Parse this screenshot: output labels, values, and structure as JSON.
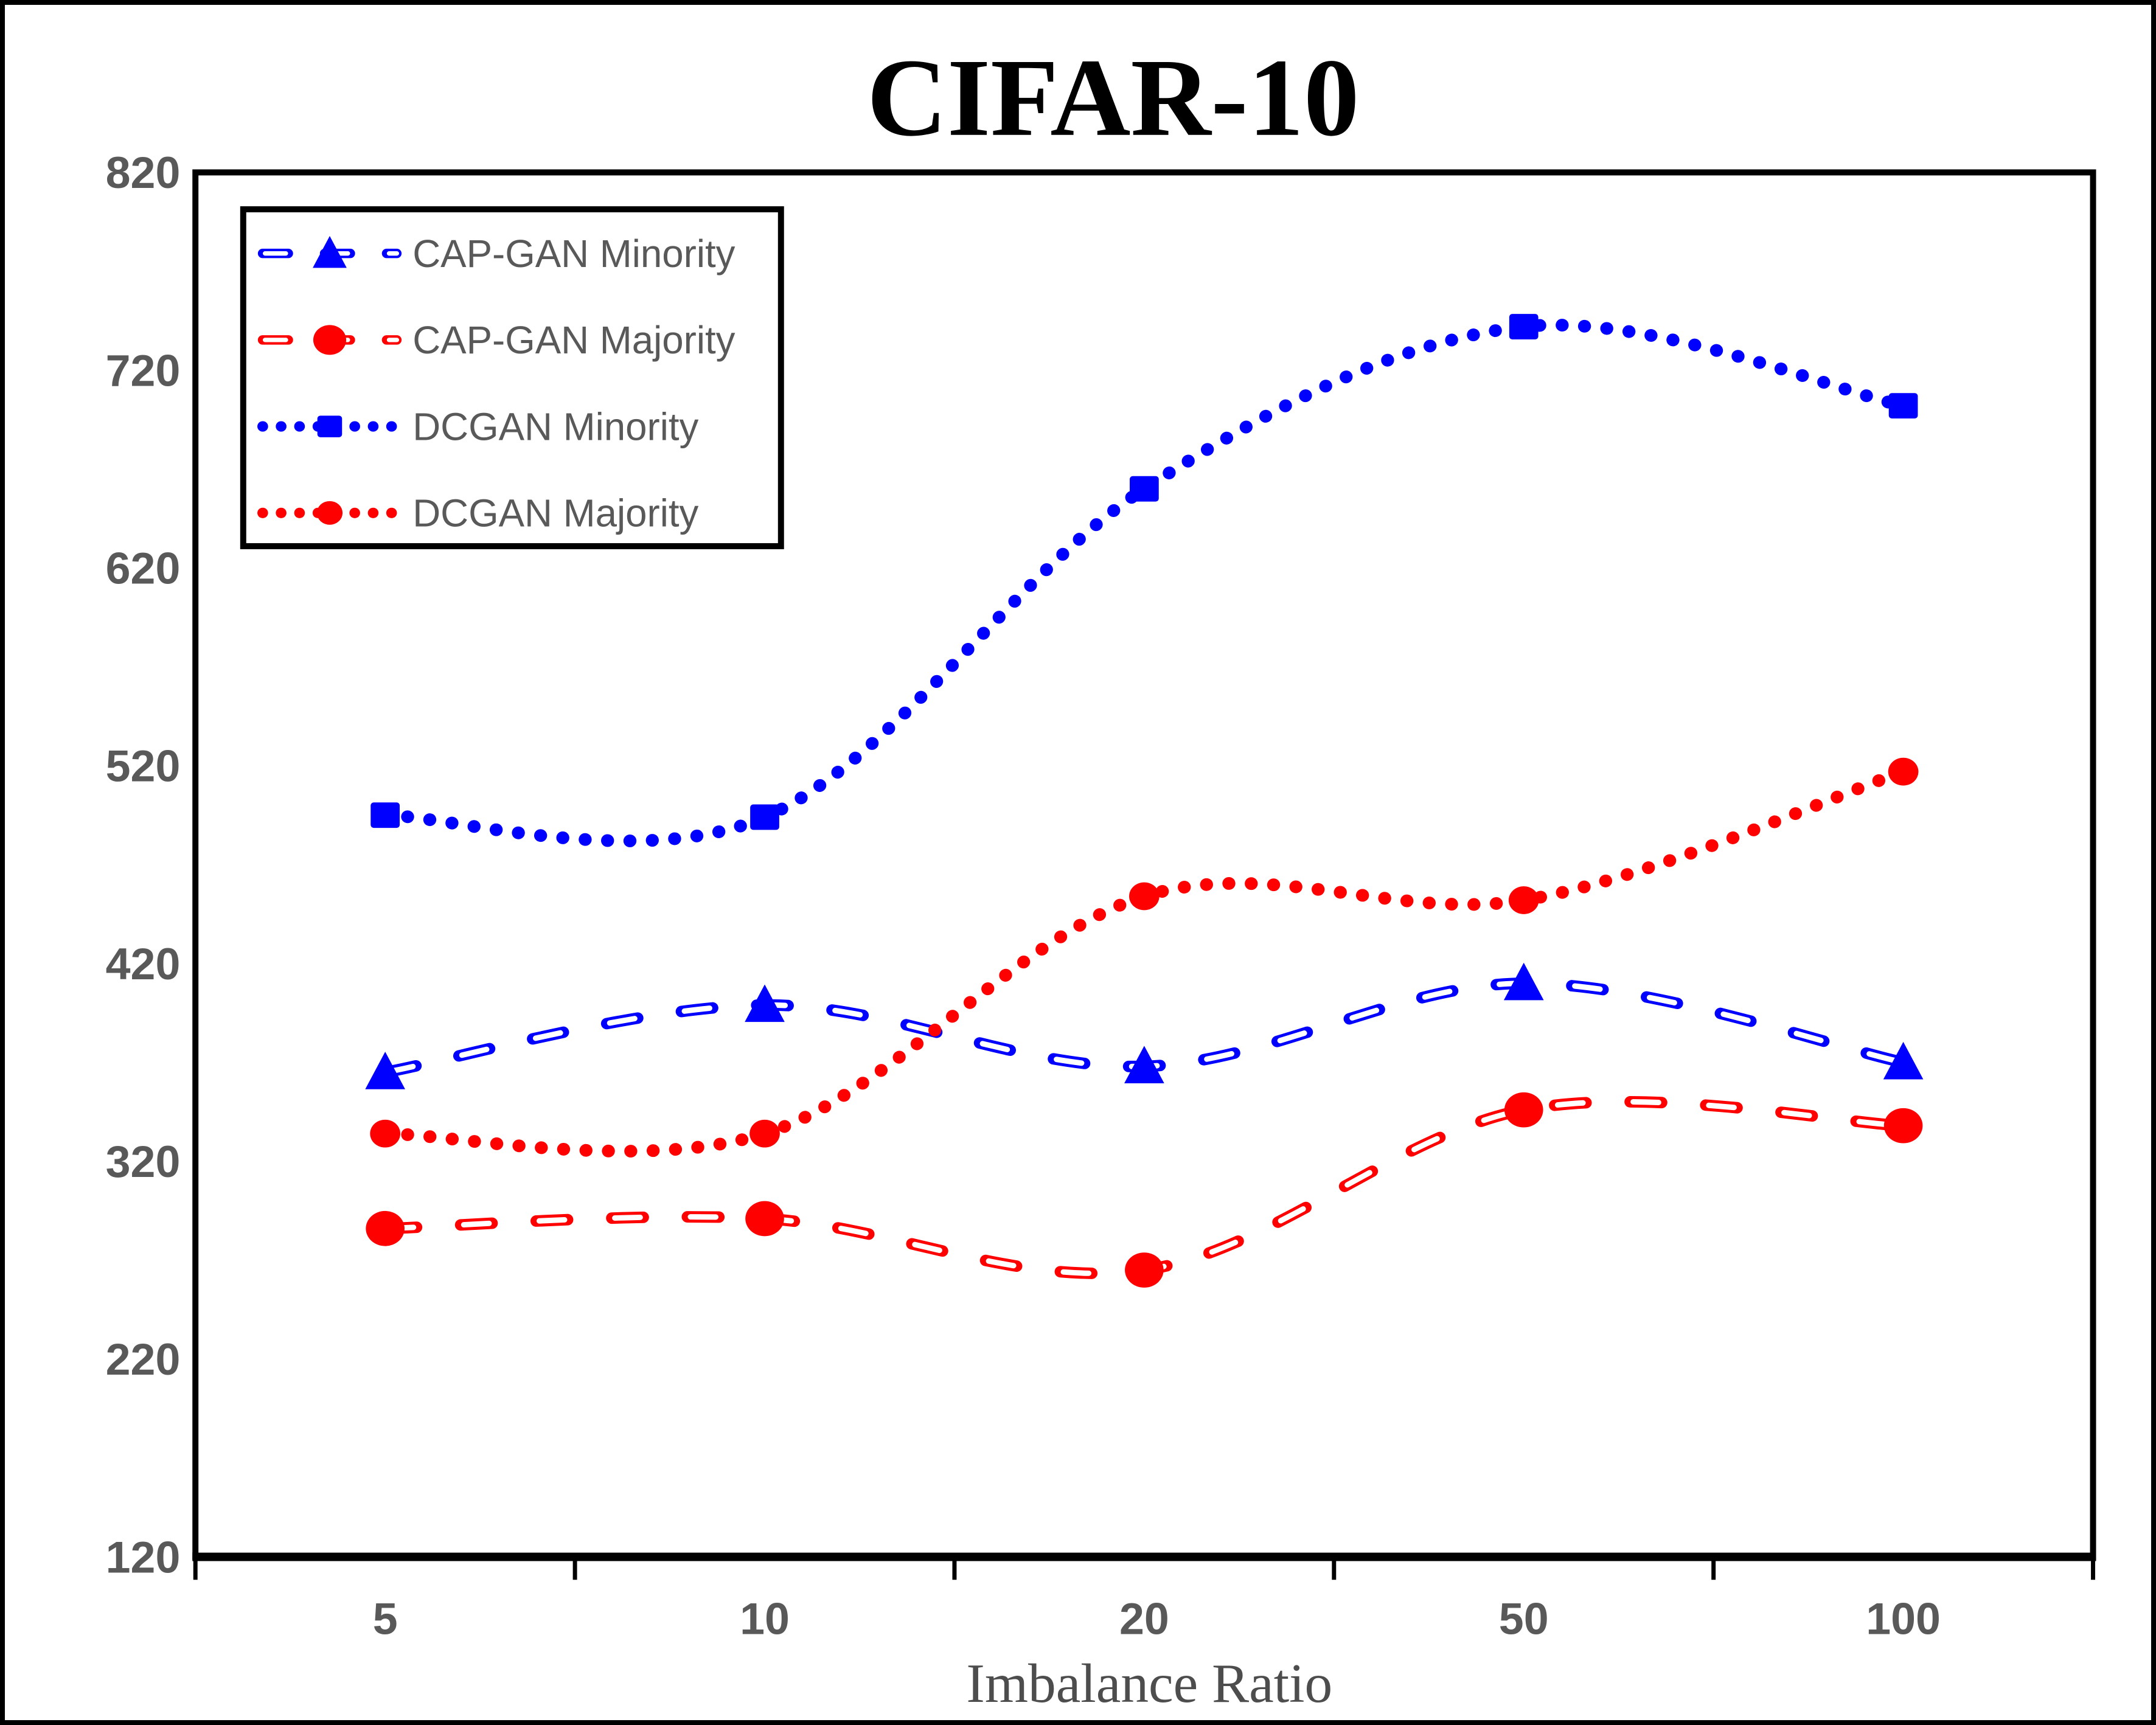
{
  "figure": {
    "background": "#ffffff",
    "border_color": "#000000"
  },
  "chart_data": {
    "type": "line",
    "title": "CIFAR-10",
    "xlabel": "Imbalance Ratio",
    "ylabel": "",
    "categories": [
      "5",
      "10",
      "20",
      "50",
      "100"
    ],
    "y_tick_labels": [
      "820",
      "720",
      "620",
      "520",
      "420",
      "320",
      "220",
      "120"
    ],
    "ylim": [
      120,
      820
    ],
    "y_tick_step": 100,
    "grid": false,
    "smoothed_lines": true,
    "legend_position": "upper-left-inside",
    "series": [
      {
        "name": "CAP-GAN Minority",
        "color": "#0000ff",
        "line_style": "hollow-dash",
        "marker": "triangle",
        "values": [
          365,
          399,
          368,
          410,
          370
        ]
      },
      {
        "name": "CAP-GAN Majority",
        "color": "#ff0000",
        "line_style": "hollow-dash",
        "marker": "circle-large",
        "values": [
          286,
          291,
          265,
          346,
          338
        ]
      },
      {
        "name": "DCGAN Minority",
        "color": "#0000ff",
        "line_style": "dotted",
        "marker": "square",
        "values": [
          495,
          494,
          660,
          742,
          702
        ]
      },
      {
        "name": "DCGAN Majority",
        "color": "#ff0000",
        "line_style": "dotted",
        "marker": "circle",
        "values": [
          334,
          334,
          454,
          452,
          517
        ]
      }
    ],
    "text_colors": {
      "title": "#000000",
      "tick_labels": "#595959",
      "axis_title": "#4d4d4d",
      "legend": "#595959"
    }
  }
}
